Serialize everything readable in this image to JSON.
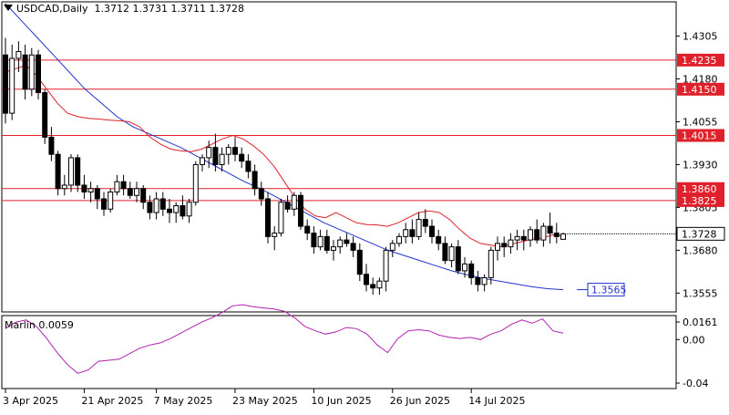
{
  "window": {
    "symbol_label": "USDCAD,Daily",
    "ohlc_values": "1.3712 1.3731 1.3711 1.3728"
  },
  "colors": {
    "background": "#ffffff",
    "grid_border": "#000000",
    "candle_bull_fill": "#ffffff",
    "candle_bear_fill": "#000000",
    "red_line": "#e0202a",
    "blue_line": "#2233cc",
    "oscillator": "#b020b0"
  },
  "indicator": {
    "label": "Marlin 0.0059",
    "axis_ticks": [
      "0.0161",
      "0.00",
      "-0.04"
    ]
  },
  "price_axis": {
    "ticks": [
      "1.4305",
      "1.4180",
      "1.4055",
      "1.3930",
      "1.3805",
      "1.3680",
      "1.3555"
    ]
  },
  "labels": {
    "current_price": "1.3728",
    "ma_value": "1.3565",
    "levels": [
      "1.4235",
      "1.4150",
      "1.4015",
      "1.3860",
      "1.3825"
    ]
  },
  "time_axis": {
    "labels": [
      "3 Apr 2025",
      "21 Apr 2025",
      "7 May 2025",
      "23 May 2025",
      "10 Jun 2025",
      "26 Jun 2025",
      "14 Jul 2025"
    ]
  },
  "chart_data": {
    "type": "candlestick",
    "symbol": "USDCAD",
    "timeframe": "Daily",
    "y_range": [
      1.35,
      1.4405
    ],
    "horizontal_levels": [
      1.4235,
      1.415,
      1.4015,
      1.386,
      1.3825
    ],
    "current_price": 1.3728,
    "ma_end_value": 1.3565,
    "candles": [
      [
        1.425,
        1.43,
        1.405,
        1.408
      ],
      [
        1.408,
        1.428,
        1.406,
        1.424
      ],
      [
        1.424,
        1.429,
        1.42,
        1.426
      ],
      [
        1.425,
        1.428,
        1.412,
        1.415
      ],
      [
        1.415,
        1.427,
        1.413,
        1.425
      ],
      [
        1.425,
        1.4265,
        1.412,
        1.414
      ],
      [
        1.414,
        1.415,
        1.399,
        1.401
      ],
      [
        1.401,
        1.404,
        1.394,
        1.396
      ],
      [
        1.396,
        1.397,
        1.384,
        1.386
      ],
      [
        1.386,
        1.39,
        1.384,
        1.387
      ],
      [
        1.387,
        1.396,
        1.385,
        1.395
      ],
      [
        1.395,
        1.396,
        1.385,
        1.387
      ],
      [
        1.387,
        1.39,
        1.383,
        1.385
      ],
      [
        1.385,
        1.388,
        1.382,
        1.386
      ],
      [
        1.386,
        1.387,
        1.38,
        1.383
      ],
      [
        1.383,
        1.385,
        1.378,
        1.38
      ],
      [
        1.38,
        1.386,
        1.379,
        1.385
      ],
      [
        1.385,
        1.39,
        1.384,
        1.388
      ],
      [
        1.388,
        1.39,
        1.384,
        1.386
      ],
      [
        1.386,
        1.388,
        1.383,
        1.384
      ],
      [
        1.384,
        1.388,
        1.382,
        1.386
      ],
      [
        1.386,
        1.387,
        1.38,
        1.382
      ],
      [
        1.382,
        1.384,
        1.377,
        1.379
      ],
      [
        1.379,
        1.385,
        1.377,
        1.383
      ],
      [
        1.383,
        1.385,
        1.378,
        1.38
      ],
      [
        1.38,
        1.383,
        1.376,
        1.379
      ],
      [
        1.379,
        1.382,
        1.376,
        1.381
      ],
      [
        1.381,
        1.384,
        1.377,
        1.378
      ],
      [
        1.378,
        1.383,
        1.376,
        1.382
      ],
      [
        1.382,
        1.394,
        1.381,
        1.393
      ],
      [
        1.393,
        1.396,
        1.391,
        1.395
      ],
      [
        1.395,
        1.4,
        1.392,
        1.398
      ],
      [
        1.398,
        1.402,
        1.391,
        1.393
      ],
      [
        1.393,
        1.398,
        1.391,
        1.396
      ],
      [
        1.396,
        1.399,
        1.393,
        1.398
      ],
      [
        1.398,
        1.401,
        1.394,
        1.396
      ],
      [
        1.396,
        1.398,
        1.392,
        1.394
      ],
      [
        1.394,
        1.396,
        1.389,
        1.391
      ],
      [
        1.391,
        1.393,
        1.384,
        1.386
      ],
      [
        1.386,
        1.388,
        1.381,
        1.383
      ],
      [
        1.383,
        1.385,
        1.37,
        1.372
      ],
      [
        1.372,
        1.375,
        1.368,
        1.373
      ],
      [
        1.373,
        1.383,
        1.372,
        1.382
      ],
      [
        1.382,
        1.384,
        1.379,
        1.38
      ],
      [
        1.38,
        1.385,
        1.378,
        1.384
      ],
      [
        1.384,
        1.385,
        1.374,
        1.375
      ],
      [
        1.375,
        1.377,
        1.371,
        1.373
      ],
      [
        1.373,
        1.375,
        1.367,
        1.369
      ],
      [
        1.369,
        1.374,
        1.368,
        1.372
      ],
      [
        1.372,
        1.374,
        1.367,
        1.368
      ],
      [
        1.368,
        1.371,
        1.365,
        1.369
      ],
      [
        1.369,
        1.372,
        1.367,
        1.371
      ],
      [
        1.371,
        1.373,
        1.369,
        1.37
      ],
      [
        1.37,
        1.372,
        1.366,
        1.368
      ],
      [
        1.368,
        1.37,
        1.359,
        1.361
      ],
      [
        1.361,
        1.364,
        1.356,
        1.358
      ],
      [
        1.358,
        1.36,
        1.355,
        1.357
      ],
      [
        1.357,
        1.36,
        1.355,
        1.359
      ],
      [
        1.359,
        1.369,
        1.356,
        1.368
      ],
      [
        1.368,
        1.371,
        1.366,
        1.37
      ],
      [
        1.37,
        1.373,
        1.369,
        1.372
      ],
      [
        1.372,
        1.376,
        1.37,
        1.374
      ],
      [
        1.374,
        1.377,
        1.37,
        1.372
      ],
      [
        1.372,
        1.379,
        1.371,
        1.377
      ],
      [
        1.377,
        1.38,
        1.373,
        1.375
      ],
      [
        1.375,
        1.377,
        1.37,
        1.372
      ],
      [
        1.372,
        1.374,
        1.368,
        1.37
      ],
      [
        1.37,
        1.372,
        1.364,
        1.365
      ],
      [
        1.365,
        1.37,
        1.363,
        1.369
      ],
      [
        1.369,
        1.371,
        1.361,
        1.362
      ],
      [
        1.362,
        1.366,
        1.36,
        1.364
      ],
      [
        1.364,
        1.365,
        1.358,
        1.36
      ],
      [
        1.36,
        1.362,
        1.356,
        1.358
      ],
      [
        1.358,
        1.361,
        1.356,
        1.36
      ],
      [
        1.36,
        1.369,
        1.358,
        1.368
      ],
      [
        1.368,
        1.372,
        1.365,
        1.37
      ],
      [
        1.37,
        1.372,
        1.366,
        1.369
      ],
      [
        1.369,
        1.373,
        1.367,
        1.371
      ],
      [
        1.371,
        1.374,
        1.368,
        1.372
      ],
      [
        1.372,
        1.374,
        1.368,
        1.371
      ],
      [
        1.371,
        1.375,
        1.369,
        1.374
      ],
      [
        1.374,
        1.377,
        1.37,
        1.371
      ],
      [
        1.371,
        1.376,
        1.369,
        1.375
      ],
      [
        1.375,
        1.379,
        1.37,
        1.373
      ],
      [
        1.373,
        1.376,
        1.37,
        1.372
      ],
      [
        1.3712,
        1.3731,
        1.3711,
        1.3728
      ]
    ],
    "red_ma": [
      1.42,
      1.421,
      1.422,
      1.419,
      1.415,
      1.411,
      1.408,
      1.407,
      1.4065,
      1.4063,
      1.406,
      1.4058,
      1.4055,
      1.404,
      1.401,
      1.399,
      1.3975,
      1.397,
      1.3968,
      1.3975,
      1.399,
      1.4005,
      1.4015,
      1.4005,
      1.3985,
      1.396,
      1.3925,
      1.388,
      1.3835,
      1.38,
      1.378,
      1.3775,
      1.379,
      1.3775,
      1.376,
      1.3755,
      1.3754,
      1.375,
      1.376,
      1.3775,
      1.379,
      1.3795,
      1.379,
      1.377,
      1.374,
      1.3715,
      1.37,
      1.3695,
      1.369,
      1.3698,
      1.3705,
      1.3712,
      1.3716,
      1.3725,
      1.3722
    ],
    "blue_ma": [
      1.44,
      1.435,
      1.43,
      1.425,
      1.42,
      1.415,
      1.411,
      1.407,
      1.404,
      1.402,
      1.4,
      1.398,
      1.3955,
      1.393,
      1.3905,
      1.388,
      1.386,
      1.3835,
      1.381,
      1.3785,
      1.376,
      1.374,
      1.372,
      1.37,
      1.368,
      1.3665,
      1.365,
      1.3635,
      1.362,
      1.3608,
      1.3598,
      1.359,
      1.3582,
      1.3574,
      1.3568,
      1.3565
    ],
    "oscillator": [
      0.01,
      0.016,
      0.018,
      0.012,
      0.001,
      -0.012,
      -0.023,
      -0.031,
      -0.028,
      -0.02,
      -0.019,
      -0.018,
      -0.013,
      -0.008,
      -0.005,
      -0.003,
      0.001,
      0.006,
      0.011,
      0.016,
      0.02,
      0.025,
      0.031,
      0.032,
      0.03,
      0.029,
      0.028,
      0.026,
      0.02,
      0.012,
      0.008,
      0.005,
      0.007,
      0.011,
      0.01,
      0.005,
      -0.005,
      -0.012,
      0.001,
      0.008,
      0.009,
      0.008,
      0.004,
      0.002,
      0.001,
      0.002,
      0.0,
      0.005,
      0.008,
      0.014,
      0.018,
      0.015,
      0.019,
      0.008,
      0.0059
    ]
  }
}
